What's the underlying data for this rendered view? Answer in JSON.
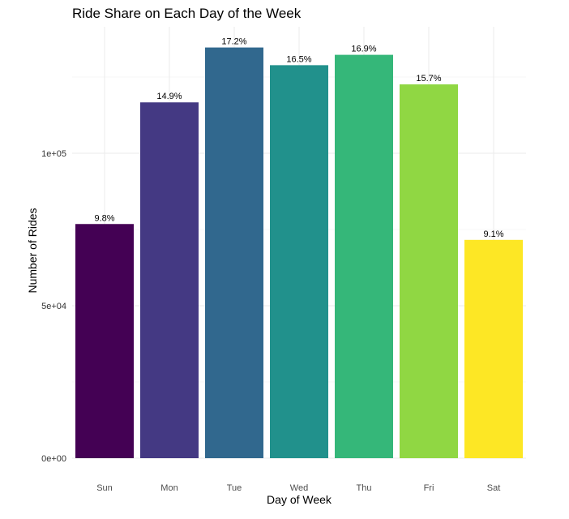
{
  "chart_data": {
    "type": "bar",
    "title": "Ride Share on Each Day of the Week",
    "xlabel": "Day of Week",
    "ylabel": "Number of Rides",
    "categories": [
      "Sun",
      "Mon",
      "Tue",
      "Wed",
      "Thu",
      "Fri",
      "Sat"
    ],
    "values": [
      76800,
      116700,
      134700,
      128900,
      132300,
      122600,
      71600
    ],
    "labels": [
      "9.8%",
      "14.9%",
      "17.2%",
      "16.5%",
      "16.9%",
      "15.7%",
      "9.1%"
    ],
    "colors": [
      "#440154",
      "#443983",
      "#31688e",
      "#21918c",
      "#35b779",
      "#90d743",
      "#fde725"
    ],
    "yticks": [
      0,
      50000,
      100000
    ],
    "ytick_labels": [
      "0e+00",
      "5e+04",
      "1e+05"
    ],
    "ylim": [
      0,
      141500
    ],
    "grid": true,
    "legend": "none"
  }
}
